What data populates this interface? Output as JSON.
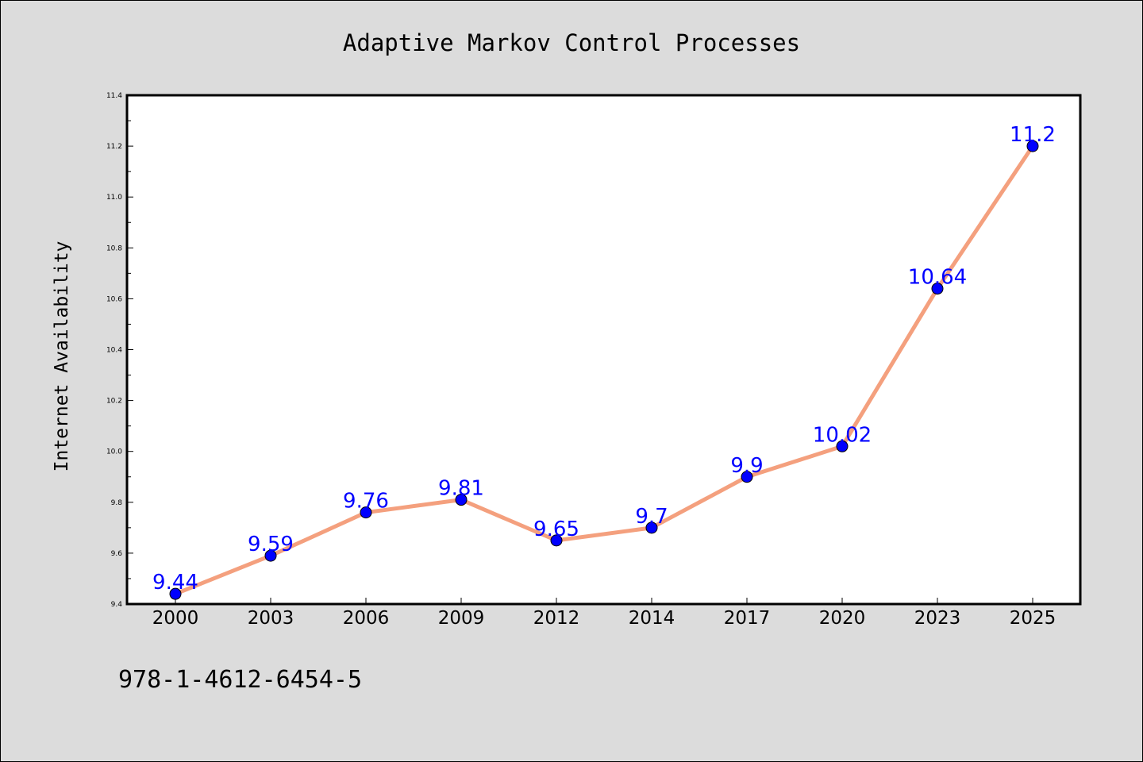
{
  "chart_data": {
    "type": "line",
    "title": "Adaptive Markov Control Processes",
    "xlabel": "",
    "ylabel": "Internet Availability",
    "categories": [
      "2000",
      "2003",
      "2006",
      "2009",
      "2012",
      "2014",
      "2017",
      "2020",
      "2023",
      "2025"
    ],
    "series": [
      {
        "values": [
          9.44,
          9.59,
          9.76,
          9.81,
          9.65,
          9.7,
          9.9,
          10.02,
          10.64,
          11.2
        ],
        "data_labels": [
          "9.44",
          "9.59",
          "9.76",
          "9.81",
          "9.65",
          "9.7",
          "9.9",
          "10.02",
          "10.64",
          "11.2"
        ]
      }
    ],
    "ylim": [
      9.4,
      11.4
    ],
    "yticks": [
      "9.4",
      "9.6",
      "9.8",
      "10.0",
      "10.2",
      "10.4",
      "10.6",
      "10.8",
      "11.0",
      "11.2",
      "11.4"
    ],
    "grid": false,
    "legend": "none",
    "colors": {
      "line": "#f4a07e",
      "marker": "#0000ff",
      "data_label": "#0000ff"
    }
  },
  "footer_text": "978-1-4612-6454-5"
}
